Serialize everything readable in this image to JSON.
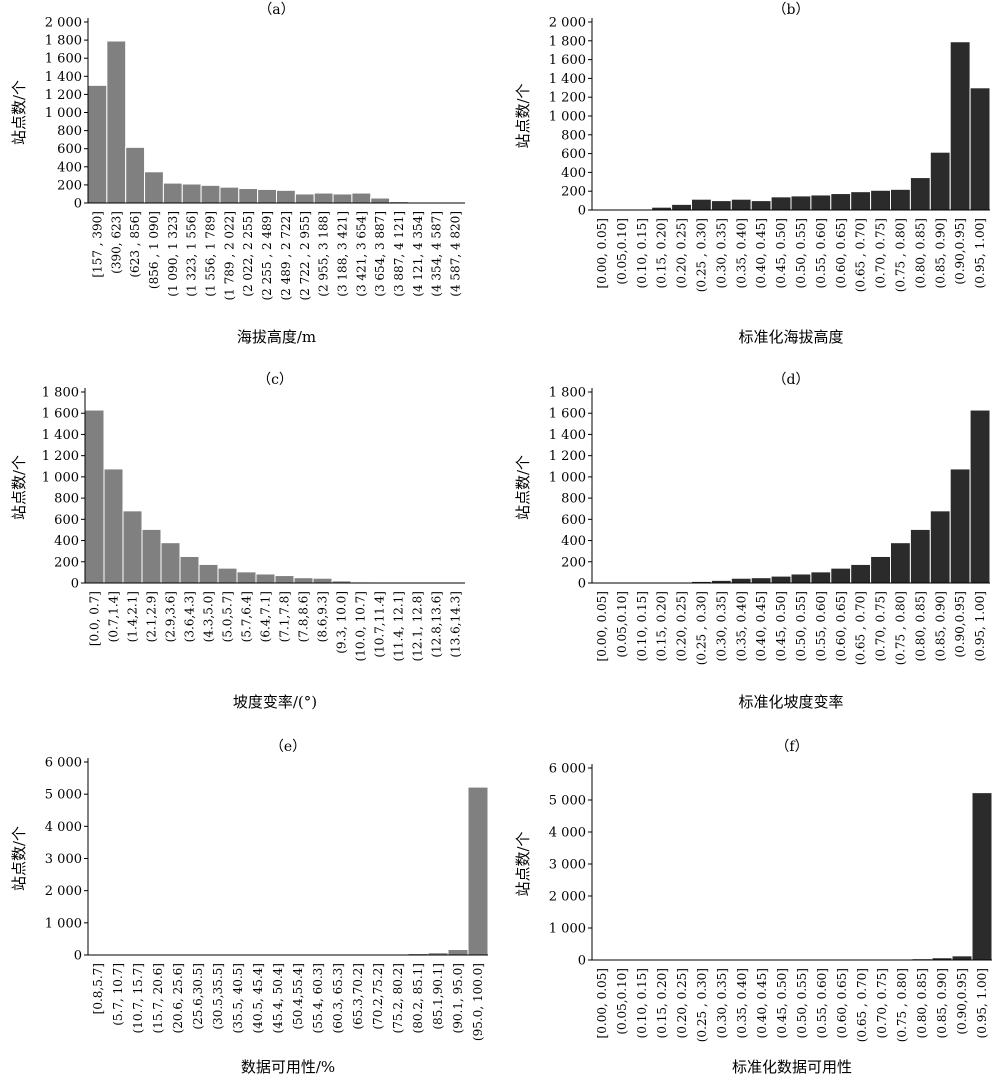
{
  "chart_data": [
    {
      "panel": "（a）",
      "type": "bar",
      "xlabel": "海拔高度/m",
      "ylabel": "站点数/个",
      "ylim": [
        0,
        2000
      ],
      "yticks": [
        "0",
        "200",
        "400",
        "600",
        "800",
        "1 000",
        "1 200",
        "1 400",
        "1 600",
        "1 800",
        "2 000"
      ],
      "bar_color": "#808080",
      "categories": [
        "[157 , 390]",
        "(390, 623]",
        "(623 , 856]",
        "(856 , 1 090]",
        "(1 090, 1 323]",
        "(1 323, 1 556]",
        "(1 556, 1 789]",
        "(1 789 , 2 022]",
        "(2 022, 2 255]",
        "(2 255 , 2 489]",
        "(2 489 , 2 722]",
        "(2 722 , 2 955]",
        "(2 955, 3 188]",
        "(3 188, 3 421]",
        "(3 421, 3 654]",
        "(3 654, 3 887]",
        "(3 887, 4 121]",
        "(4 121, 4 354]",
        "(4 354, 4 587]",
        "(4 587, 4 820]"
      ],
      "values": [
        1300,
        1790,
        615,
        345,
        220,
        210,
        195,
        175,
        160,
        150,
        140,
        100,
        110,
        100,
        110,
        55,
        15,
        10,
        5,
        5
      ]
    },
    {
      "panel": "（b）",
      "type": "bar",
      "xlabel": "标准化海拔高度",
      "ylabel": "站点数/个",
      "ylim": [
        0,
        2000
      ],
      "yticks": [
        "0",
        "200",
        "400",
        "600",
        "800",
        "1 000",
        "1 200",
        "1 400",
        "1 600",
        "1 800",
        "2 000"
      ],
      "bar_color": "#2b2b2b",
      "categories": [
        "[0.00, 0.05]",
        "(0.05,0.10]",
        "(0.10, 0.15]",
        "(0.15, 0.20]",
        "(0.20, 0.25]",
        "(0.25 , 0.30]",
        "(0.30, 0.35]",
        "(0.35, 0.40]",
        "(0.40, 0.45]",
        "(0.45, 0.50]",
        "(0.50, 0.55]",
        "(0.55, 0.60]",
        "(0.60, 0.65]",
        "(0.65 , 0.70]",
        "(0.70, 0.75]",
        "(0.75 , 0.80]",
        "(0.80, 0.85]",
        "(0.85, 0.90]",
        "(0.90,0.95]",
        "(0.95, 1.00]"
      ],
      "values": [
        5,
        5,
        10,
        30,
        60,
        115,
        100,
        115,
        100,
        140,
        150,
        160,
        175,
        195,
        210,
        220,
        345,
        615,
        1790,
        1300
      ]
    },
    {
      "panel": "（c）",
      "type": "bar",
      "xlabel": "坡度变率/(°)",
      "ylabel": "站点数/个",
      "ylim": [
        0,
        1800
      ],
      "yticks": [
        "0",
        "200",
        "400",
        "600",
        "800",
        "1 000",
        "1 200",
        "1 400",
        "1 600",
        "1 800"
      ],
      "bar_color": "#808080",
      "categories": [
        "[0.0, 0.7]",
        "(0.7,1.4]",
        "(1.4,2.1]",
        "(2.1,2.9]",
        "(2.9,3.6]",
        "(3.6,4.3]",
        "(4.3,5.0]",
        "(5.0,5.7]",
        "(5.7,6.4]",
        "(6.4,7.1]",
        "(7.1,7.8]",
        "(7.8,8.6]",
        "(8.6,9.3]",
        "(9.3, 10.0]",
        "(10.0, 10.7]",
        "(10.7,11.4]",
        "(11.4, 12.1]",
        "(12.1, 12.8]",
        "(12.8,13.6]",
        "(13.6,14.3]"
      ],
      "values": [
        1630,
        1075,
        680,
        505,
        380,
        250,
        175,
        140,
        105,
        85,
        70,
        50,
        45,
        20,
        10,
        5,
        5,
        3,
        2,
        2
      ]
    },
    {
      "panel": "（d）",
      "type": "bar",
      "xlabel": "标准化坡度变率",
      "ylabel": "站点数/个",
      "ylim": [
        0,
        1800
      ],
      "yticks": [
        "0",
        "200",
        "400",
        "600",
        "800",
        "1 000",
        "1 200",
        "1 400",
        "1 600",
        "1 800"
      ],
      "bar_color": "#2b2b2b",
      "categories": [
        "[0.00, 0.05]",
        "(0.05,0.10]",
        "(0.10, 0.15]",
        "(0.15, 0.20]",
        "(0.20, 0.25]",
        "(0.25 , 0.30]",
        "(0.30, 0.35]",
        "(0.35, 0.40]",
        "(0.40, 0.45]",
        "(0.45, 0.50]",
        "(0.50, 0.55]",
        "(0.55, 0.60]",
        "(0.60, 0.65]",
        "(0.65 , 0.70]",
        "(0.70, 0.75]",
        "(0.75 , 0.80]",
        "(0.80, 0.85]",
        "(0.85, 0.90]",
        "(0.90,0.95]",
        "(0.95, 1.00]"
      ],
      "values": [
        2,
        2,
        3,
        5,
        5,
        15,
        25,
        45,
        50,
        65,
        85,
        105,
        140,
        175,
        250,
        380,
        505,
        680,
        1075,
        1630
      ]
    },
    {
      "panel": "（e）",
      "type": "bar",
      "xlabel": "数据可用性/%",
      "ylabel": "站点数/个",
      "ylim": [
        0,
        6000
      ],
      "yticks": [
        "0",
        "1 000",
        "2 000",
        "3 000",
        "4 000",
        "5 000",
        "6 000"
      ],
      "bar_color": "#808080",
      "categories": [
        "[0.8,5.7]",
        "(5.7, 10.7]",
        "(10.7, 15.7]",
        "(15.7, 20.6]",
        "(20.6, 25.6]",
        "(25.6,30.5]",
        "(30.5,35.5]",
        "(35.5, 40.5]",
        "(40.5, 45.4]",
        "(45.4, 50.4]",
        "(50.4,55.4]",
        "(55.4, 60.3]",
        "(60.3, 65.3]",
        "(65.3,70.2]",
        "(70.2,75.2]",
        "(75.2, 80.2]",
        "(80.2, 85.1]",
        "(85.1,90.1]",
        "(90.1, 95.0]",
        "(95.0, 100.0]"
      ],
      "values": [
        5,
        5,
        5,
        5,
        5,
        5,
        5,
        5,
        5,
        5,
        5,
        10,
        10,
        20,
        15,
        30,
        45,
        70,
        170,
        5220
      ]
    },
    {
      "panel": "（f）",
      "type": "bar",
      "xlabel": "标准化数据可用性",
      "ylabel": "站点数/个",
      "ylim": [
        0,
        6000
      ],
      "yticks": [
        "0",
        "1 000",
        "2 000",
        "3 000",
        "4 000",
        "5 000",
        "6 000"
      ],
      "bar_color": "#2b2b2b",
      "categories": [
        "[0.00, 0.05]",
        "(0.05,0.10]",
        "(0.10, 0.15]",
        "(0.15, 0.20]",
        "(0.20, 0.25]",
        "(0.25 , 0.30]",
        "(0.30, 0.35]",
        "(0.35, 0.40]",
        "(0.40, 0.45]",
        "(0.45, 0.50]",
        "(0.50, 0.55]",
        "(0.55, 0.60]",
        "(0.60, 0.65]",
        "(0.65 , 0.70]",
        "(0.70, 0.75]",
        "(0.75 , 0.80]",
        "(0.80, 0.85]",
        "(0.85, 0.90]",
        "(0.90,0.95]",
        "(0.95, 1.00]"
      ],
      "values": [
        5,
        5,
        5,
        5,
        5,
        5,
        5,
        5,
        5,
        5,
        5,
        5,
        10,
        10,
        15,
        20,
        40,
        70,
        130,
        5230
      ]
    }
  ]
}
